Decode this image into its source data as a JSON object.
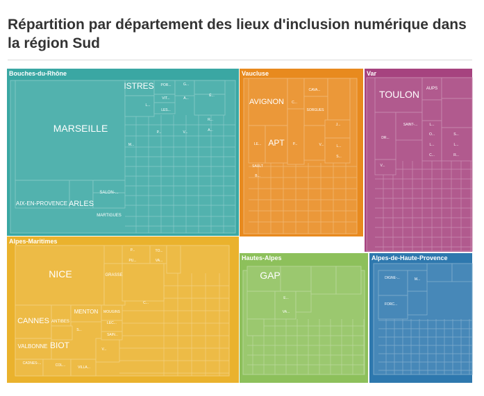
{
  "chart_data": {
    "type": "treemap",
    "title": "Répartition par département des lieux d'inclusion numérique dans la région Sud",
    "departments": [
      {
        "name": "Bouches-du-Rhône",
        "color": "#3aa7a3",
        "labels": [
          {
            "text": "MARSEILLE",
            "size": 14
          },
          {
            "text": "ISTRES",
            "size": 12
          },
          {
            "text": "AIX-EN-PROVENCE",
            "size": 8
          },
          {
            "text": "ARLES",
            "size": 11
          },
          {
            "text": "SALON-...",
            "size": 6
          },
          {
            "text": "MARTIGUES",
            "size": 6
          },
          {
            "text": "POR...",
            "size": 5
          },
          {
            "text": "G...",
            "size": 5
          },
          {
            "text": "VIT...",
            "size": 5
          },
          {
            "text": "A...",
            "size": 5
          },
          {
            "text": "É...",
            "size": 5
          },
          {
            "text": "L...",
            "size": 5
          },
          {
            "text": "LES...",
            "size": 5
          },
          {
            "text": "R...",
            "size": 5
          },
          {
            "text": "A...",
            "size": 5
          },
          {
            "text": "P...",
            "size": 5
          },
          {
            "text": "V...",
            "size": 5
          },
          {
            "text": "M...",
            "size": 5
          }
        ]
      },
      {
        "name": "Vaucluse",
        "color": "#e88a1e",
        "labels": [
          {
            "text": "AVIGNON",
            "size": 11
          },
          {
            "text": "APT",
            "size": 12
          },
          {
            "text": "CAVA...",
            "size": 5
          },
          {
            "text": "C...",
            "size": 5
          },
          {
            "text": "SORGUES",
            "size": 5
          },
          {
            "text": "J...",
            "size": 5
          },
          {
            "text": "LE...",
            "size": 5
          },
          {
            "text": "P...",
            "size": 5
          },
          {
            "text": "V...",
            "size": 5
          },
          {
            "text": "L...",
            "size": 5
          },
          {
            "text": "S...",
            "size": 5
          },
          {
            "text": "SAULT",
            "size": 5
          },
          {
            "text": "B...",
            "size": 5
          }
        ]
      },
      {
        "name": "Var",
        "color": "#a6437f",
        "labels": [
          {
            "text": "TOULON",
            "size": 14
          },
          {
            "text": "AUPS",
            "size": 6
          },
          {
            "text": "SAINT-...",
            "size": 5
          },
          {
            "text": "L...",
            "size": 5
          },
          {
            "text": "DR...",
            "size": 5
          },
          {
            "text": "O...",
            "size": 5
          },
          {
            "text": "S...",
            "size": 5
          },
          {
            "text": "L...",
            "size": 5
          },
          {
            "text": "L...",
            "size": 5
          },
          {
            "text": "C...",
            "size": 5
          },
          {
            "text": "R...",
            "size": 5
          },
          {
            "text": "V...",
            "size": 5
          }
        ]
      },
      {
        "name": "Alpes-Maritimes",
        "color": "#eab22d",
        "labels": [
          {
            "text": "NICE",
            "size": 14
          },
          {
            "text": "CANNES",
            "size": 11
          },
          {
            "text": "BIOT",
            "size": 12
          },
          {
            "text": "MENTON",
            "size": 8
          },
          {
            "text": "VALBONNE",
            "size": 8
          },
          {
            "text": "ANTIBES",
            "size": 6
          },
          {
            "text": "MOUGINS",
            "size": 5
          },
          {
            "text": "GRASSE",
            "size": 6
          },
          {
            "text": "CADNES-...",
            "size": 5
          },
          {
            "text": "COL...",
            "size": 5
          },
          {
            "text": "VILLA...",
            "size": 5
          },
          {
            "text": "LEC...",
            "size": 5
          },
          {
            "text": "SAIN...",
            "size": 5
          },
          {
            "text": "S...",
            "size": 5
          },
          {
            "text": "V...",
            "size": 5
          },
          {
            "text": "C...",
            "size": 5
          },
          {
            "text": "P...",
            "size": 5
          },
          {
            "text": "TO...",
            "size": 5
          },
          {
            "text": "PU...",
            "size": 5
          },
          {
            "text": "VA...",
            "size": 5
          }
        ]
      },
      {
        "name": "Hautes-Alpes",
        "color": "#8dc05b",
        "labels": [
          {
            "text": "GAP",
            "size": 14
          },
          {
            "text": "E...",
            "size": 5
          },
          {
            "text": "VA...",
            "size": 5
          }
        ]
      },
      {
        "name": "Alpes-de-Haute-Provence",
        "color": "#2e78ae",
        "labels": [
          {
            "text": "DIGNE-...",
            "size": 5
          },
          {
            "text": "M...",
            "size": 5
          },
          {
            "text": "FORC...",
            "size": 5
          }
        ]
      }
    ]
  }
}
